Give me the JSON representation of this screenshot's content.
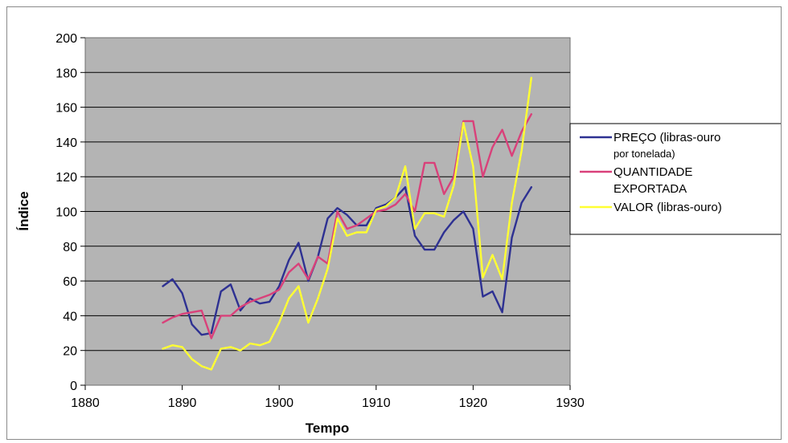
{
  "chart_data": {
    "type": "line",
    "title": "",
    "xlabel": "Tempo",
    "ylabel": "Índice",
    "xlim": [
      1880,
      1930
    ],
    "ylim": [
      0,
      200
    ],
    "x_ticks": [
      1880,
      1890,
      1900,
      1910,
      1920,
      1930
    ],
    "y_ticks": [
      0,
      20,
      40,
      60,
      80,
      100,
      120,
      140,
      160,
      180,
      200
    ],
    "grid": true,
    "legend_position": "right",
    "colors": {
      "plot_background": "#b4b4b4",
      "gridline": "#000000",
      "series": [
        "#2e3192",
        "#d9417a",
        "#ffff33"
      ]
    },
    "legend": [
      {
        "series": 0,
        "lines": [
          "PREÇO (libras-ouro",
          "por tonelada)"
        ]
      },
      {
        "series": 1,
        "lines": [
          "QUANTIDADE",
          "EXPORTADA"
        ]
      },
      {
        "series": 2,
        "lines": [
          "VALOR (libras-ouro)"
        ]
      }
    ],
    "x": [
      1888,
      1889,
      1890,
      1891,
      1892,
      1893,
      1894,
      1895,
      1896,
      1897,
      1898,
      1899,
      1900,
      1901,
      1902,
      1903,
      1904,
      1905,
      1906,
      1907,
      1908,
      1909,
      1910,
      1911,
      1912,
      1913,
      1914,
      1915,
      1916,
      1917,
      1918,
      1919,
      1920,
      1921,
      1922,
      1923,
      1924,
      1925,
      1926
    ],
    "series": [
      {
        "name": "PREÇO (libras-ouro por tonelada)",
        "values": [
          57,
          61,
          53,
          35,
          29,
          30,
          54,
          58,
          43,
          50,
          47,
          48,
          57,
          72,
          82,
          60,
          74,
          96,
          102,
          98,
          92,
          92,
          102,
          104,
          108,
          114,
          86,
          78,
          78,
          88,
          95,
          100,
          90,
          51,
          54,
          42,
          85,
          105,
          114
        ]
      },
      {
        "name": "QUANTIDADE EXPORTADA",
        "values": [
          36,
          39,
          41,
          42,
          43,
          27,
          40,
          40,
          45,
          48,
          50,
          52,
          55,
          65,
          70,
          61,
          74,
          70,
          100,
          90,
          92,
          96,
          100,
          101,
          104,
          110,
          100,
          128,
          128,
          110,
          120,
          152,
          152,
          120,
          137,
          147,
          132,
          146,
          156
        ]
      },
      {
        "name": "VALOR (libras-ouro)",
        "values": [
          21,
          23,
          22,
          15,
          11,
          9,
          21,
          22,
          20,
          24,
          23,
          25,
          36,
          50,
          57,
          36,
          50,
          67,
          96,
          86,
          88,
          88,
          101,
          103,
          108,
          126,
          90,
          99,
          99,
          97,
          115,
          151,
          126,
          62,
          75,
          61,
          105,
          135,
          177
        ]
      }
    ]
  }
}
